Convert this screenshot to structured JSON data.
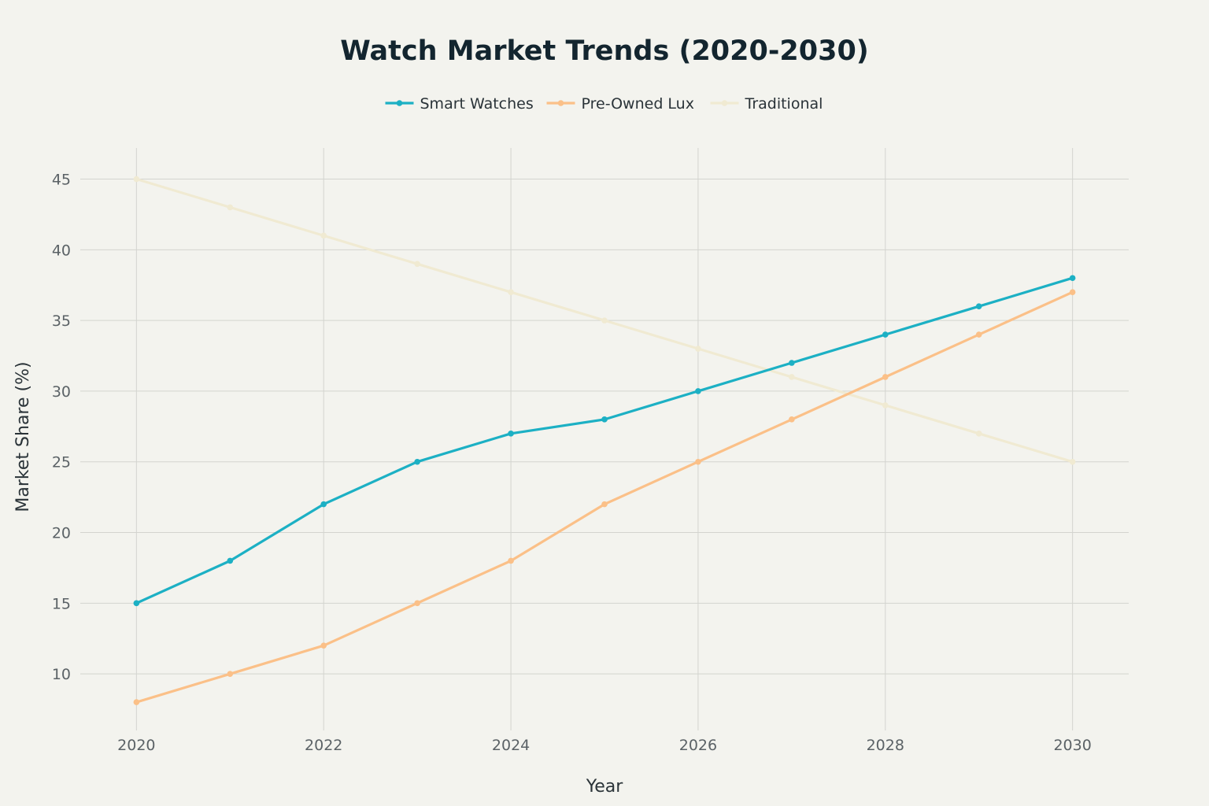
{
  "chart_data": {
    "type": "line",
    "title": "Watch Market Trends (2020-2030)",
    "xlabel": "Year",
    "ylabel": "Market Share (%)",
    "x": [
      2020,
      2021,
      2022,
      2023,
      2024,
      2025,
      2026,
      2027,
      2028,
      2029,
      2030
    ],
    "xticks": [
      2020,
      2022,
      2024,
      2026,
      2028,
      2030
    ],
    "yticks": [
      10,
      15,
      20,
      25,
      30,
      35,
      40,
      45
    ],
    "xlim": [
      2019.4,
      2030.6
    ],
    "ylim": [
      6,
      47.2
    ],
    "grid": true,
    "legend_position": "top-center",
    "series": [
      {
        "name": "Smart Watches",
        "color": "#1cb0c4",
        "values": [
          15,
          18,
          22,
          25,
          27,
          28,
          30,
          32,
          34,
          36,
          38
        ]
      },
      {
        "name": "Pre-Owned Lux",
        "color": "#fbc088",
        "values": [
          8,
          10,
          12,
          15,
          18,
          22,
          25,
          28,
          31,
          34,
          37
        ]
      },
      {
        "name": "Traditional",
        "color": "#f0ead2",
        "values": [
          45,
          43,
          41,
          39,
          37,
          35,
          33,
          31,
          29,
          27,
          25
        ]
      }
    ]
  }
}
